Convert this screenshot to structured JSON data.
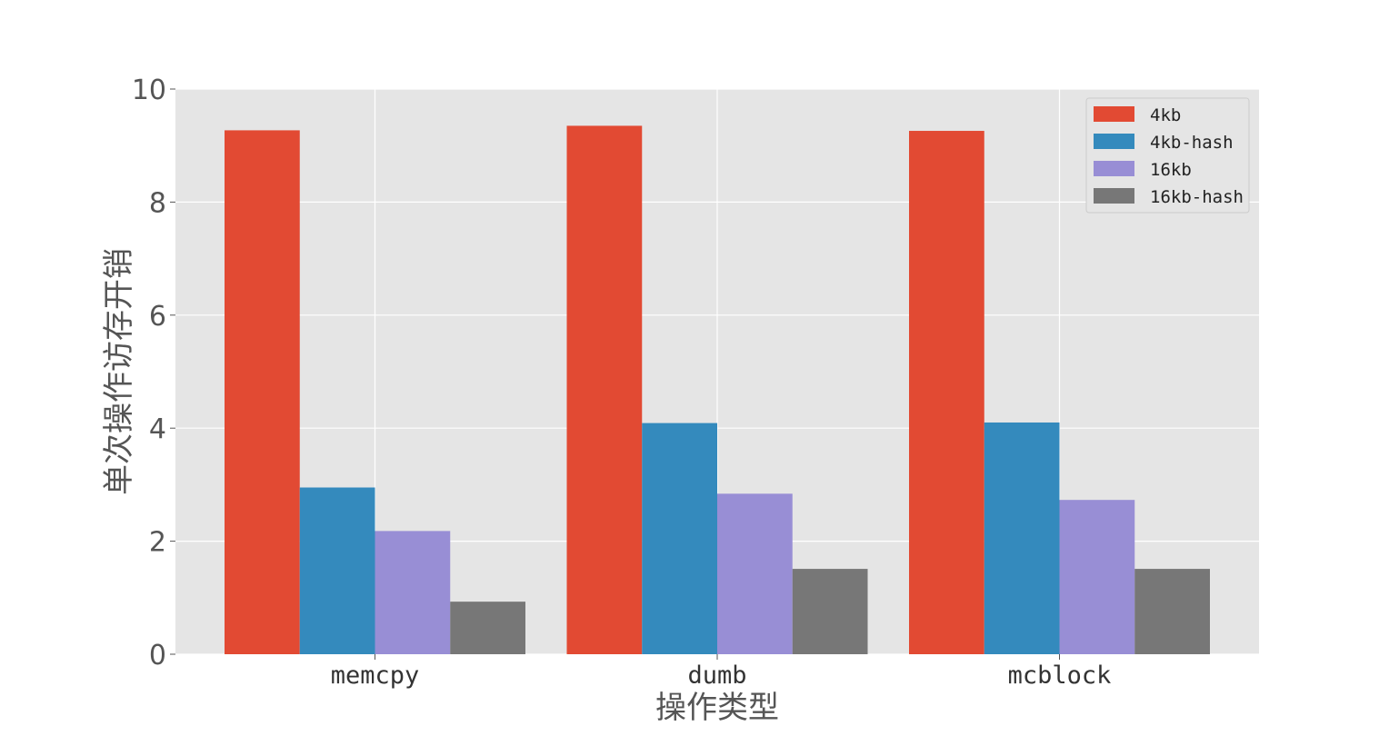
{
  "chart_data": {
    "type": "bar",
    "title": "",
    "xlabel": "操作类型",
    "ylabel": "单次操作访存开销",
    "categories": [
      "memcpy",
      "dumb",
      "mcblock"
    ],
    "series": [
      {
        "name": "4kb",
        "values": [
          9.27,
          9.35,
          9.26
        ],
        "color": "#E24A33"
      },
      {
        "name": "4kb-hash",
        "values": [
          2.95,
          4.09,
          4.1
        ],
        "color": "#348ABD"
      },
      {
        "name": "16kb",
        "values": [
          2.18,
          2.84,
          2.73
        ],
        "color": "#988ED5"
      },
      {
        "name": "16kb-hash",
        "values": [
          0.93,
          1.51,
          1.51
        ],
        "color": "#777777"
      }
    ],
    "ylim": [
      0,
      10
    ],
    "yticks": [
      0,
      2,
      4,
      6,
      8,
      10
    ],
    "grid": true,
    "legend": "top-right",
    "background": "#E5E5E5"
  }
}
